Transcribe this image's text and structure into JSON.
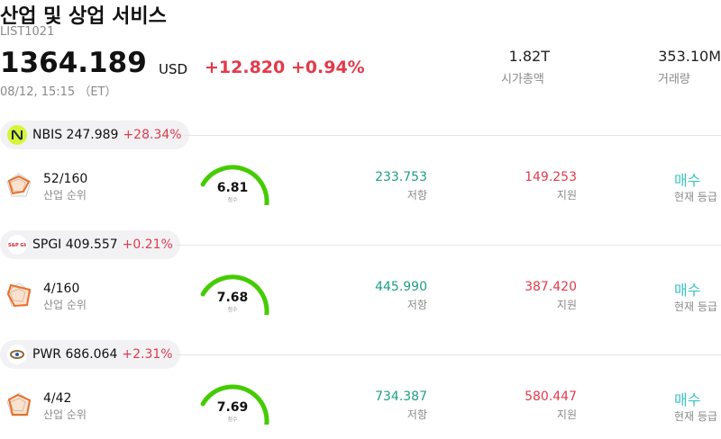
{
  "header": {
    "title": "산업 및 상업 서비스",
    "code": "LIST1021",
    "price": "1364.189",
    "currency": "USD",
    "change": "+12.820",
    "change_pct": "+0.94%",
    "timestamp": "08/12, 15:15 （ET）"
  },
  "stats": {
    "market_cap_value": "1.82T",
    "market_cap_label": "시가총액",
    "volume_value": "353.10M",
    "volume_label": "거래량"
  },
  "colors": {
    "negative_red": "#e23b4a",
    "resistance_green": "#1e9e84",
    "buy_teal": "#3bc4c0",
    "gauge_green": "#44cc00"
  },
  "stocks": [
    {
      "ticker": "NBIS",
      "price": "247.989",
      "change_pct": "+28.34%",
      "logo_icon": "nebius-logo-icon",
      "rank": "52/160",
      "rank_label": "산업 순위",
      "score": "6.81",
      "score_fraction": 0.681,
      "score_label": "점수",
      "resistance": "233.753",
      "resistance_label": "저항",
      "support": "149.253",
      "support_label": "지원",
      "rating": "매수",
      "rating_label": "현재 등급"
    },
    {
      "ticker": "SPGI",
      "price": "409.557",
      "change_pct": "+0.21%",
      "logo_icon": "sp-global-logo-icon",
      "rank": "4/160",
      "rank_label": "산업 순위",
      "score": "7.68",
      "score_fraction": 0.768,
      "score_label": "점수",
      "resistance": "445.990",
      "resistance_label": "저항",
      "support": "387.420",
      "support_label": "지원",
      "rating": "매수",
      "rating_label": "현재 등급"
    },
    {
      "ticker": "PWR",
      "price": "686.064",
      "change_pct": "+2.31%",
      "logo_icon": "quanta-logo-icon",
      "rank": "4/42",
      "rank_label": "산업 순위",
      "score": "7.69",
      "score_fraction": 0.769,
      "score_label": "점수",
      "resistance": "734.387",
      "resistance_label": "저항",
      "support": "580.447",
      "support_label": "지원",
      "rating": "매수",
      "rating_label": "현재 등급"
    }
  ]
}
